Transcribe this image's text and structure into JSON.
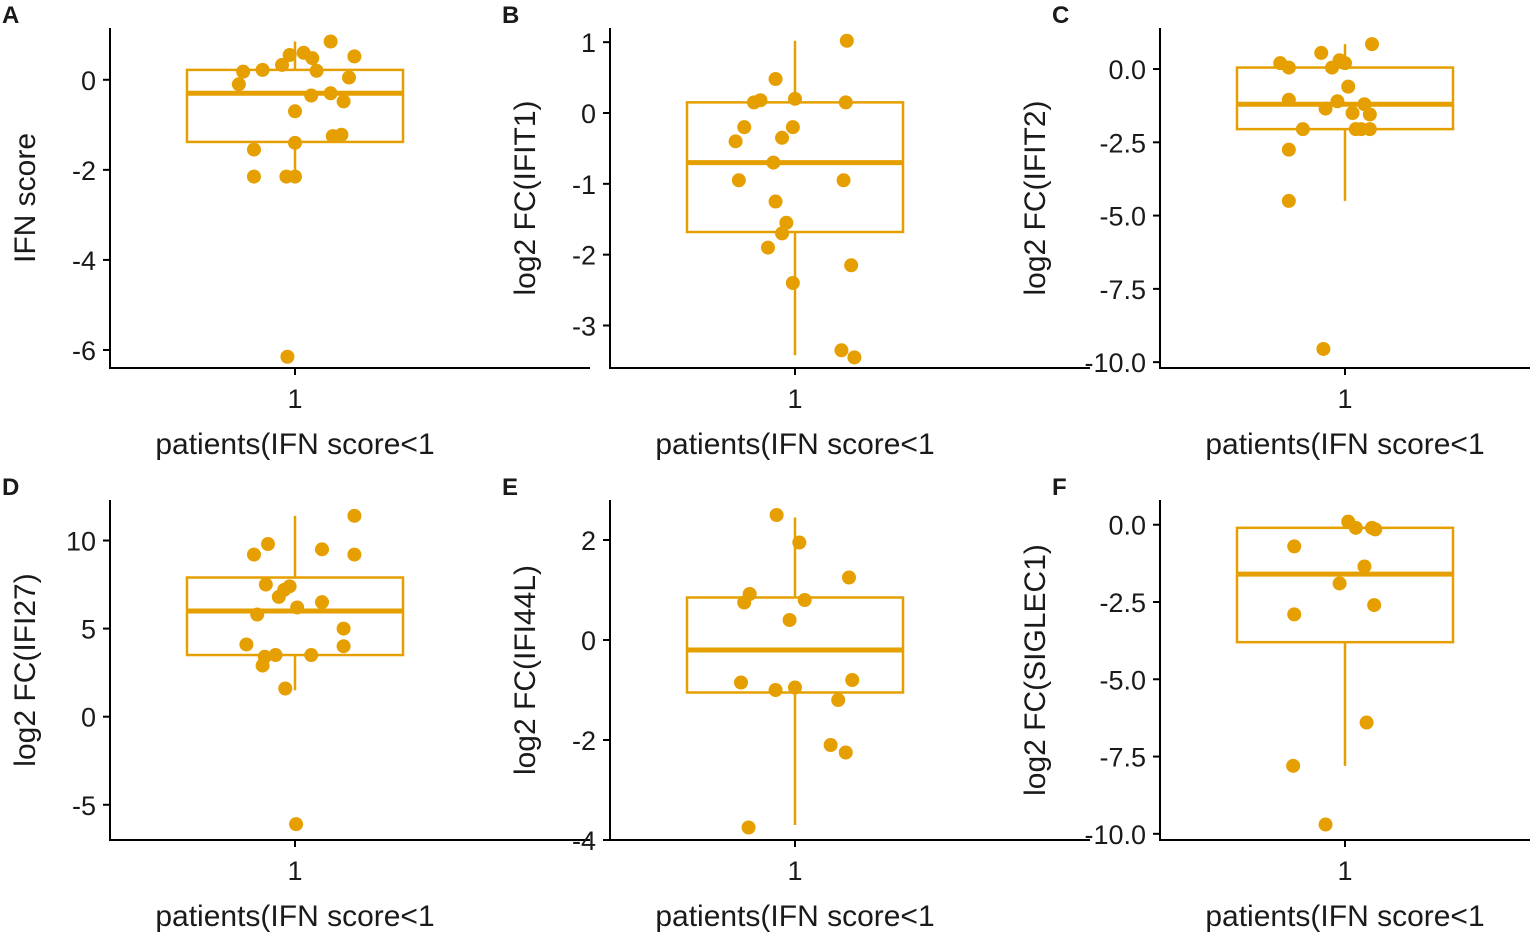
{
  "figure": {
    "accent_color": "#E69F00"
  },
  "chart_data": [
    {
      "panel": "A",
      "type": "box",
      "xlabel": "patients(IFN score<1",
      "ylabel": "IFN score",
      "category": "1",
      "ylim": [
        -6.4,
        1.15
      ],
      "yticks": [
        0,
        -2,
        -4,
        -6
      ],
      "ytick_labels": [
        "0",
        "-2",
        "-4",
        "-6"
      ],
      "box": {
        "q1": -1.38,
        "median": -0.3,
        "q3": 0.22,
        "whisker_low": -2.15,
        "whisker_high": 0.85
      },
      "points": [
        {
          "x": -0.52,
          "y": -0.1
        },
        {
          "x": -0.48,
          "y": 0.18
        },
        {
          "x": -0.3,
          "y": 0.22
        },
        {
          "x": -0.12,
          "y": 0.33
        },
        {
          "x": -0.05,
          "y": 0.55
        },
        {
          "x": 0.08,
          "y": 0.6
        },
        {
          "x": 0.16,
          "y": 0.48
        },
        {
          "x": 0.33,
          "y": 0.85
        },
        {
          "x": 0.55,
          "y": 0.52
        },
        {
          "x": 0.2,
          "y": 0.2
        },
        {
          "x": 0.5,
          "y": 0.05
        },
        {
          "x": 0.15,
          "y": -0.35
        },
        {
          "x": 0.33,
          "y": -0.3
        },
        {
          "x": 0.45,
          "y": -0.48
        },
        {
          "x": 0.0,
          "y": -0.7
        },
        {
          "x": 0.35,
          "y": -1.25
        },
        {
          "x": 0.43,
          "y": -1.22
        },
        {
          "x": 0.0,
          "y": -1.4
        },
        {
          "x": -0.38,
          "y": -1.55
        },
        {
          "x": -0.38,
          "y": -2.15
        },
        {
          "x": -0.08,
          "y": -2.15
        },
        {
          "x": 0.0,
          "y": -2.15
        },
        {
          "x": -0.07,
          "y": -6.15
        }
      ]
    },
    {
      "panel": "B",
      "type": "box",
      "xlabel": "patients(IFN score<1",
      "ylabel": "log2 FC(IFIT1)",
      "category": "1",
      "ylim": [
        -3.6,
        1.2
      ],
      "yticks": [
        1,
        0,
        -1,
        -2,
        -3
      ],
      "ytick_labels": [
        "1",
        "0",
        "-1",
        "-2",
        "-3"
      ],
      "box": {
        "q1": -1.68,
        "median": -0.7,
        "q3": 0.15,
        "whisker_low": -3.42,
        "whisker_high": 1.02
      },
      "points": [
        {
          "x": -0.55,
          "y": -0.4
        },
        {
          "x": -0.47,
          "y": -0.2
        },
        {
          "x": -0.38,
          "y": 0.15
        },
        {
          "x": -0.32,
          "y": 0.18
        },
        {
          "x": -0.18,
          "y": 0.48
        },
        {
          "x": 0.0,
          "y": 0.2
        },
        {
          "x": -0.12,
          "y": -0.35
        },
        {
          "x": -0.02,
          "y": -0.2
        },
        {
          "x": -0.52,
          "y": -0.95
        },
        {
          "x": -0.2,
          "y": -0.7
        },
        {
          "x": -0.18,
          "y": -1.25
        },
        {
          "x": -0.08,
          "y": -1.55
        },
        {
          "x": -0.12,
          "y": -1.7
        },
        {
          "x": -0.25,
          "y": -1.9
        },
        {
          "x": -0.02,
          "y": -2.4
        },
        {
          "x": 0.48,
          "y": 1.02
        },
        {
          "x": 0.47,
          "y": 0.15
        },
        {
          "x": 0.45,
          "y": -0.95
        },
        {
          "x": 0.52,
          "y": -2.15
        },
        {
          "x": 0.43,
          "y": -3.35
        },
        {
          "x": 0.55,
          "y": -3.45
        }
      ]
    },
    {
      "panel": "C",
      "type": "box",
      "xlabel": "patients(IFN score<1",
      "ylabel": "log2 FC(IFIT2)",
      "category": "1",
      "ylim": [
        -10.2,
        1.4
      ],
      "yticks": [
        0,
        -2.5,
        -5,
        -7.5,
        -10
      ],
      "ytick_labels": [
        "0.0",
        "-2.5",
        "-5.0",
        "-7.5",
        "-10.0"
      ],
      "box": {
        "q1": -2.05,
        "median": -1.2,
        "q3": 0.05,
        "whisker_low": -4.5,
        "whisker_high": 0.85
      },
      "points": [
        {
          "x": -0.6,
          "y": 0.2
        },
        {
          "x": -0.52,
          "y": 0.05
        },
        {
          "x": -0.22,
          "y": 0.55
        },
        {
          "x": -0.12,
          "y": 0.05
        },
        {
          "x": -0.05,
          "y": 0.3
        },
        {
          "x": 0.0,
          "y": 0.2
        },
        {
          "x": 0.25,
          "y": 0.85
        },
        {
          "x": 0.03,
          "y": -0.6
        },
        {
          "x": -0.52,
          "y": -1.05
        },
        {
          "x": -0.07,
          "y": -1.1
        },
        {
          "x": 0.18,
          "y": -1.2
        },
        {
          "x": -0.18,
          "y": -1.35
        },
        {
          "x": 0.07,
          "y": -1.5
        },
        {
          "x": 0.23,
          "y": -1.55
        },
        {
          "x": -0.39,
          "y": -2.05
        },
        {
          "x": 0.1,
          "y": -2.05
        },
        {
          "x": 0.15,
          "y": -2.05
        },
        {
          "x": 0.23,
          "y": -2.05
        },
        {
          "x": -0.52,
          "y": -2.75
        },
        {
          "x": -0.52,
          "y": -4.5
        },
        {
          "x": -0.2,
          "y": -9.55
        }
      ]
    },
    {
      "panel": "D",
      "type": "box",
      "xlabel": "patients(IFN score<1",
      "ylabel": "log2 FC(IFI27)",
      "category": "1",
      "ylim": [
        -7.0,
        12.3
      ],
      "yticks": [
        10,
        5,
        0,
        -5
      ],
      "ytick_labels": [
        "10",
        "5",
        "0",
        "-5"
      ],
      "box": {
        "q1": 3.5,
        "median": 6.0,
        "q3": 7.9,
        "whisker_low": 1.5,
        "whisker_high": 11.4
      },
      "points": [
        {
          "x": -0.25,
          "y": 9.8
        },
        {
          "x": -0.38,
          "y": 9.2
        },
        {
          "x": 0.25,
          "y": 9.5
        },
        {
          "x": 0.55,
          "y": 11.4
        },
        {
          "x": 0.55,
          "y": 9.2
        },
        {
          "x": -0.27,
          "y": 7.5
        },
        {
          "x": -0.1,
          "y": 7.2
        },
        {
          "x": -0.05,
          "y": 7.4
        },
        {
          "x": -0.15,
          "y": 6.8
        },
        {
          "x": -0.35,
          "y": 5.8
        },
        {
          "x": 0.02,
          "y": 6.2
        },
        {
          "x": 0.25,
          "y": 6.5
        },
        {
          "x": 0.45,
          "y": 5.0
        },
        {
          "x": 0.45,
          "y": 4.0
        },
        {
          "x": -0.45,
          "y": 4.1
        },
        {
          "x": -0.28,
          "y": 3.4
        },
        {
          "x": -0.18,
          "y": 3.5
        },
        {
          "x": 0.15,
          "y": 3.5
        },
        {
          "x": -0.3,
          "y": 2.9
        },
        {
          "x": -0.09,
          "y": 1.6
        },
        {
          "x": 0.01,
          "y": -6.1
        }
      ]
    },
    {
      "panel": "E",
      "type": "box",
      "xlabel": "patients(IFN score<1",
      "ylabel": "log2 FC(IFI44L)",
      "category": "1",
      "ylim": [
        -4.0,
        2.8
      ],
      "yticks": [
        2,
        0,
        -2,
        -4
      ],
      "ytick_labels": [
        "2",
        "0",
        "-2",
        "-4"
      ],
      "box": {
        "q1": -1.05,
        "median": -0.2,
        "q3": 0.85,
        "whisker_low": -3.7,
        "whisker_high": 2.45
      },
      "points": [
        {
          "x": -0.17,
          "y": 2.5
        },
        {
          "x": 0.04,
          "y": 1.95
        },
        {
          "x": 0.5,
          "y": 1.25
        },
        {
          "x": -0.42,
          "y": 0.92
        },
        {
          "x": -0.47,
          "y": 0.75
        },
        {
          "x": 0.09,
          "y": 0.8
        },
        {
          "x": -0.05,
          "y": 0.4
        },
        {
          "x": -0.5,
          "y": -0.85
        },
        {
          "x": -0.18,
          "y": -1.0
        },
        {
          "x": 0.0,
          "y": -0.95
        },
        {
          "x": 0.53,
          "y": -0.8
        },
        {
          "x": 0.4,
          "y": -1.2
        },
        {
          "x": 0.33,
          "y": -2.1
        },
        {
          "x": 0.47,
          "y": -2.25
        },
        {
          "x": -0.43,
          "y": -3.75
        }
      ]
    },
    {
      "panel": "F",
      "type": "box",
      "xlabel": "patients(IFN score<1",
      "ylabel": "log2 FC(SIGLEC1)",
      "category": "1",
      "ylim": [
        -10.2,
        0.8
      ],
      "yticks": [
        0,
        -2.5,
        -5,
        -7.5,
        -10
      ],
      "ytick_labels": [
        "0.0",
        "-2.5",
        "-5.0",
        "-7.5",
        "-10.0"
      ],
      "box": {
        "q1": -3.8,
        "median": -1.6,
        "q3": -0.1,
        "whisker_low": -7.8,
        "whisker_high": 0.1
      },
      "points": [
        {
          "x": 0.03,
          "y": 0.1
        },
        {
          "x": 0.1,
          "y": -0.1
        },
        {
          "x": 0.25,
          "y": -0.1
        },
        {
          "x": 0.28,
          "y": -0.15
        },
        {
          "x": -0.47,
          "y": -0.7
        },
        {
          "x": 0.18,
          "y": -1.35
        },
        {
          "x": -0.05,
          "y": -1.9
        },
        {
          "x": 0.27,
          "y": -2.6
        },
        {
          "x": -0.47,
          "y": -2.9
        },
        {
          "x": 0.2,
          "y": -6.4
        },
        {
          "x": -0.48,
          "y": -7.8
        },
        {
          "x": -0.18,
          "y": -9.7
        }
      ]
    }
  ]
}
